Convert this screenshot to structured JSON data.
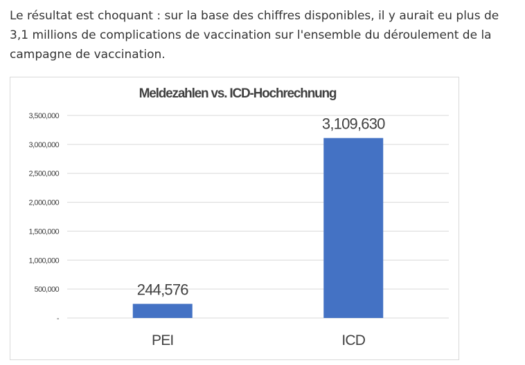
{
  "intro_text": "Le résultat est choquant : sur la base des chiffres disponibles, il y aurait eu plus de 3,1 millions de complications de vaccination sur l'ensemble du déroulement de la campagne de vaccination.",
  "chart_data": {
    "type": "bar",
    "title": "Meldezahlen vs. ICD-Hochrechnung",
    "categories": [
      "PEI",
      "ICD"
    ],
    "values": [
      244576,
      3109630
    ],
    "data_labels": [
      "244,576",
      "3,109,630"
    ],
    "ylim": [
      0,
      3500000
    ],
    "yticks": [
      0,
      500000,
      1000000,
      1500000,
      2000000,
      2500000,
      3000000,
      3500000
    ],
    "ytick_labels": [
      "-",
      "500,000",
      "1,000,000",
      "1,500,000",
      "2,000,000",
      "2,500,000",
      "3,000,000",
      "3,500,000"
    ],
    "grid": true,
    "legend": "none",
    "bar_color": "#4472c4",
    "grid_color": "#d9d9d9",
    "text_color": "#404040"
  }
}
